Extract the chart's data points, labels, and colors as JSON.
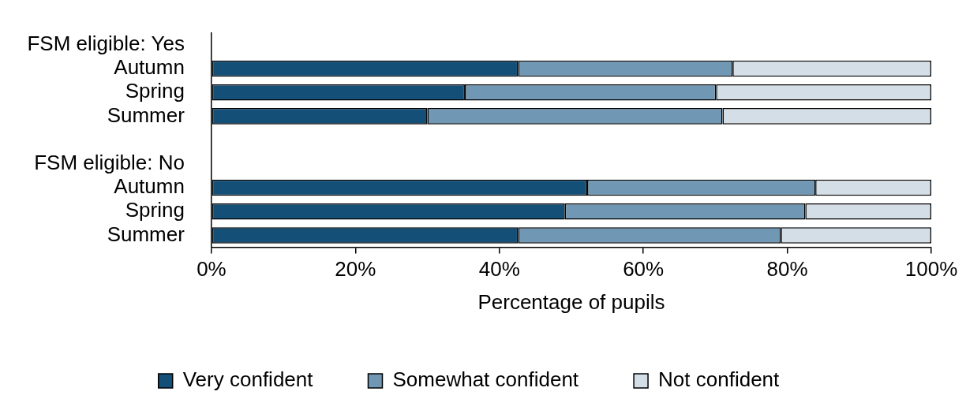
{
  "chart_data": {
    "type": "bar",
    "orientation": "horizontal",
    "stacked": true,
    "categories": [
      "FSM eligible: Yes",
      "Autumn",
      "Spring",
      "Summer",
      null,
      "FSM eligible: No",
      "Autumn",
      "Spring",
      "Summer"
    ],
    "series": [
      {
        "name": "Very confident",
        "color": "#144f77",
        "values": [
          null,
          42.6,
          35.2,
          30.0,
          null,
          null,
          52.2,
          49.1,
          42.6
        ]
      },
      {
        "name": "Somewhat confident",
        "color": "#7097b3",
        "values": [
          null,
          29.8,
          34.9,
          41.0,
          null,
          null,
          31.7,
          33.4,
          36.5
        ]
      },
      {
        "name": "Not confident",
        "color": "#d3dee6",
        "values": [
          null,
          27.6,
          29.9,
          29.0,
          null,
          null,
          16.1,
          17.5,
          20.9
        ]
      }
    ],
    "xlabel": "Percentage of pupils",
    "xlim": [
      0,
      100
    ],
    "xticks": [
      {
        "value": 0,
        "label": "0%"
      },
      {
        "value": 20,
        "label": "20%"
      },
      {
        "value": 40,
        "label": "40%"
      },
      {
        "value": 60,
        "label": "60%"
      },
      {
        "value": 80,
        "label": "80%"
      },
      {
        "value": 100,
        "label": "100%"
      }
    ],
    "grid": false,
    "legend": "bottom"
  }
}
